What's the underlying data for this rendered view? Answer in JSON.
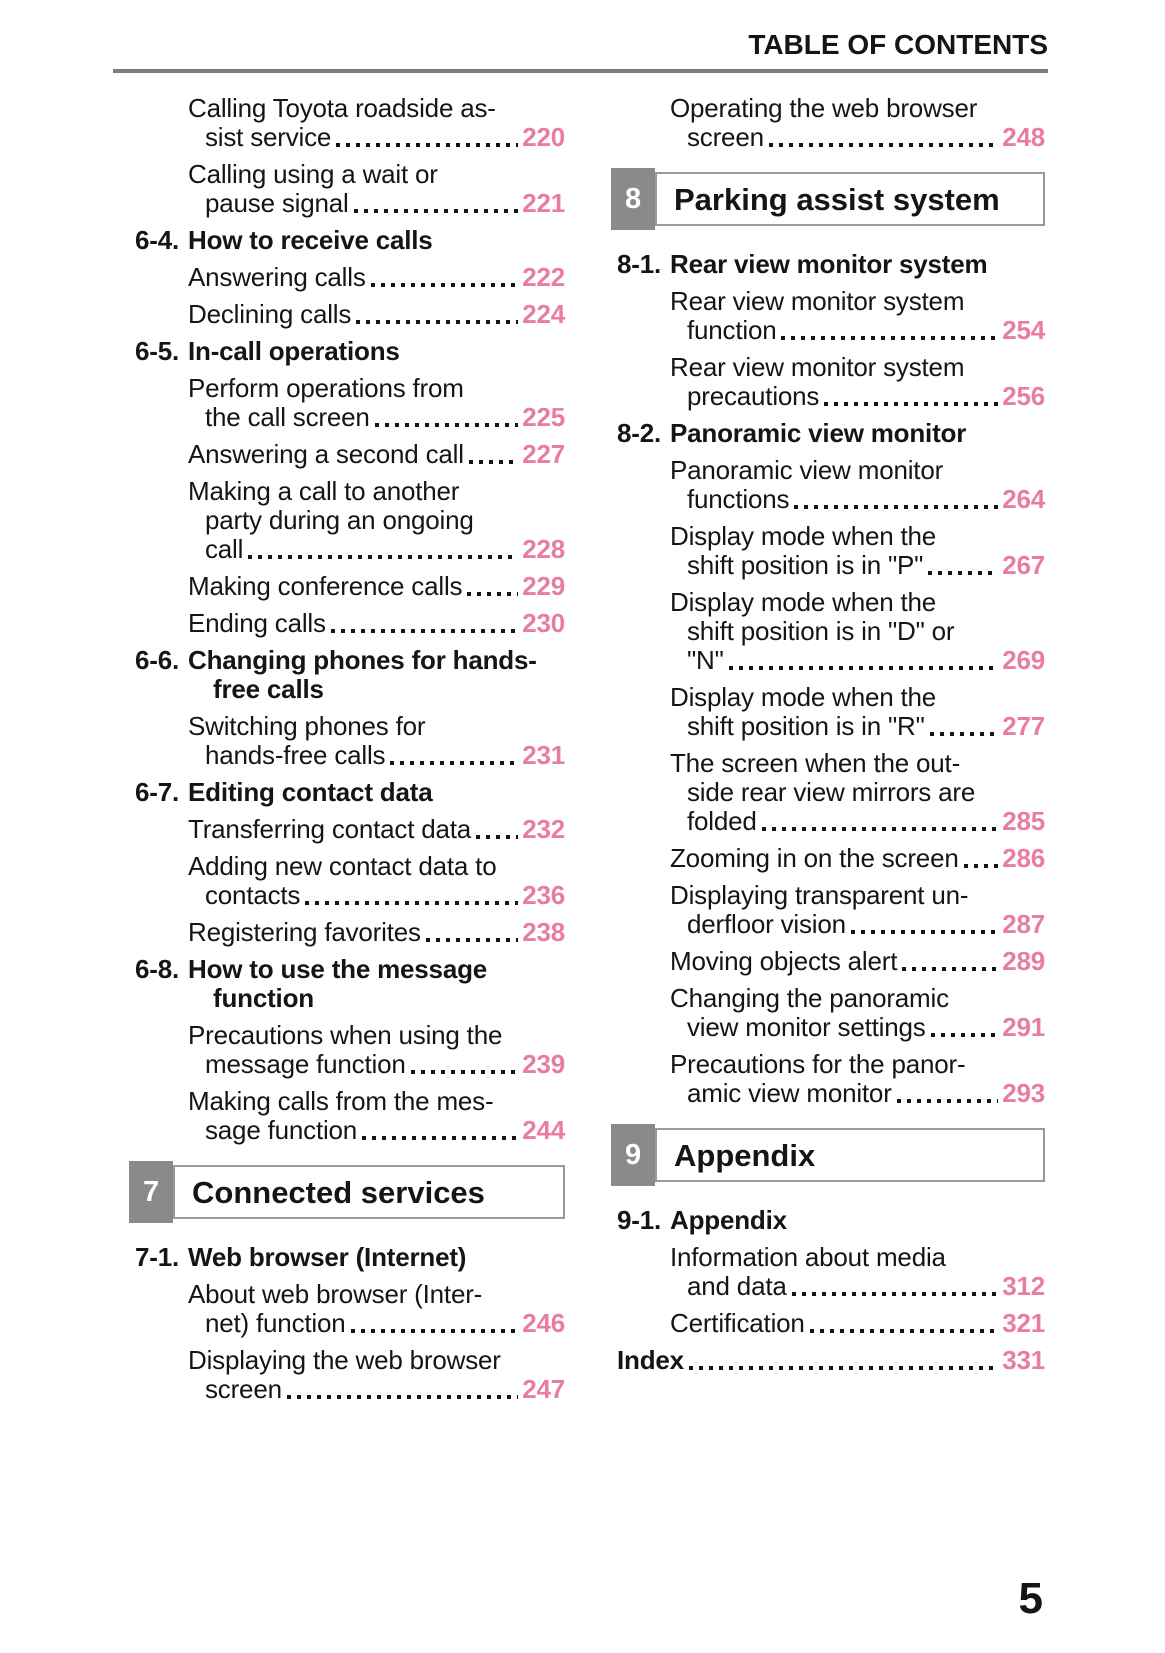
{
  "header": {
    "title": "TABLE OF CONTENTS"
  },
  "footer": {
    "page_number": "5"
  },
  "colors": {
    "page_number_pink": "#e87d9f",
    "chapter_box_gray": "#8a8a8a"
  },
  "columns": {
    "left": [
      {
        "type": "entry",
        "lines": [
          "Calling Toyota roadside as-",
          "sist service"
        ],
        "page": "220"
      },
      {
        "type": "entry",
        "lines": [
          "Calling using a wait or",
          "pause signal"
        ],
        "page": "221"
      },
      {
        "type": "heading",
        "num": "6-4.",
        "lines": [
          "How to receive calls"
        ]
      },
      {
        "type": "entry",
        "lines": [
          "Answering calls"
        ],
        "page": "222"
      },
      {
        "type": "entry",
        "lines": [
          "Declining calls"
        ],
        "page": "224"
      },
      {
        "type": "heading",
        "num": "6-5.",
        "lines": [
          "In-call operations"
        ]
      },
      {
        "type": "entry",
        "lines": [
          "Perform operations from",
          "the call screen"
        ],
        "page": "225"
      },
      {
        "type": "entry",
        "lines": [
          "Answering a second call"
        ],
        "page": "227"
      },
      {
        "type": "entry",
        "lines": [
          "Making a call to another",
          "party during an ongoing",
          "call"
        ],
        "page": "228"
      },
      {
        "type": "entry",
        "lines": [
          "Making conference calls"
        ],
        "page": "229"
      },
      {
        "type": "entry",
        "lines": [
          "Ending calls"
        ],
        "page": "230"
      },
      {
        "type": "heading",
        "num": "6-6.",
        "lines": [
          "Changing phones for hands-",
          "free calls"
        ]
      },
      {
        "type": "entry",
        "lines": [
          "Switching phones for",
          "hands-free calls"
        ],
        "page": "231"
      },
      {
        "type": "heading",
        "num": "6-7.",
        "lines": [
          "Editing contact data"
        ]
      },
      {
        "type": "entry",
        "lines": [
          "Transferring contact data"
        ],
        "page": "232"
      },
      {
        "type": "entry",
        "lines": [
          "Adding new contact data to",
          "contacts"
        ],
        "page": "236"
      },
      {
        "type": "entry",
        "lines": [
          "Registering favorites"
        ],
        "page": "238"
      },
      {
        "type": "heading",
        "num": "6-8.",
        "lines": [
          "How to use the message",
          "function"
        ]
      },
      {
        "type": "entry",
        "lines": [
          "Precautions when using the",
          "message function"
        ],
        "page": "239"
      },
      {
        "type": "entry",
        "lines": [
          "Making calls from the mes-",
          "sage function"
        ],
        "page": "244"
      },
      {
        "type": "section",
        "num": "7",
        "title": "Connected services"
      },
      {
        "type": "heading",
        "num": "7-1.",
        "lines": [
          "Web browser (Internet)"
        ]
      },
      {
        "type": "entry",
        "lines": [
          "About web browser (Inter-",
          "net) function"
        ],
        "page": "246"
      },
      {
        "type": "entry",
        "lines": [
          "Displaying the web browser",
          "screen"
        ],
        "page": "247"
      }
    ],
    "right": [
      {
        "type": "entry",
        "lines": [
          "Operating the web browser",
          "screen"
        ],
        "page": "248"
      },
      {
        "type": "section",
        "num": "8",
        "title": "Parking assist system"
      },
      {
        "type": "heading",
        "num": "8-1.",
        "lines": [
          "Rear view monitor system"
        ]
      },
      {
        "type": "entry",
        "lines": [
          "Rear view monitor system",
          "function"
        ],
        "page": "254"
      },
      {
        "type": "entry",
        "lines": [
          "Rear view monitor system",
          "precautions"
        ],
        "page": "256"
      },
      {
        "type": "heading",
        "num": "8-2.",
        "lines": [
          "Panoramic view monitor"
        ]
      },
      {
        "type": "entry",
        "lines": [
          "Panoramic view monitor",
          "functions"
        ],
        "page": "264"
      },
      {
        "type": "entry",
        "lines": [
          "Display mode when the",
          "shift position is in \"P\""
        ],
        "page": "267"
      },
      {
        "type": "entry",
        "lines": [
          "Display mode when the",
          "shift position is in \"D\" or",
          "\"N\""
        ],
        "page": "269"
      },
      {
        "type": "entry",
        "lines": [
          "Display mode when the",
          "shift position is in \"R\""
        ],
        "page": "277"
      },
      {
        "type": "entry",
        "lines": [
          "The screen when the out-",
          "side rear view mirrors are",
          "folded"
        ],
        "page": "285"
      },
      {
        "type": "entry",
        "lines": [
          "Zooming in on the screen"
        ],
        "page": "286"
      },
      {
        "type": "entry",
        "lines": [
          "Displaying transparent un-",
          "derfloor vision"
        ],
        "page": "287"
      },
      {
        "type": "entry",
        "lines": [
          "Moving objects alert"
        ],
        "page": "289"
      },
      {
        "type": "entry",
        "lines": [
          "Changing the panoramic",
          "view monitor settings"
        ],
        "page": "291"
      },
      {
        "type": "entry",
        "lines": [
          "Precautions for the panor-",
          "amic view monitor"
        ],
        "page": "293"
      },
      {
        "type": "section",
        "num": "9",
        "title": "Appendix"
      },
      {
        "type": "heading",
        "num": "9-1.",
        "lines": [
          "Appendix"
        ]
      },
      {
        "type": "entry",
        "lines": [
          "Information about media",
          "and data"
        ],
        "page": "312"
      },
      {
        "type": "entry",
        "lines": [
          "Certification"
        ],
        "page": "321"
      },
      {
        "type": "index",
        "lines": [
          "Index"
        ],
        "page": "331"
      }
    ]
  }
}
